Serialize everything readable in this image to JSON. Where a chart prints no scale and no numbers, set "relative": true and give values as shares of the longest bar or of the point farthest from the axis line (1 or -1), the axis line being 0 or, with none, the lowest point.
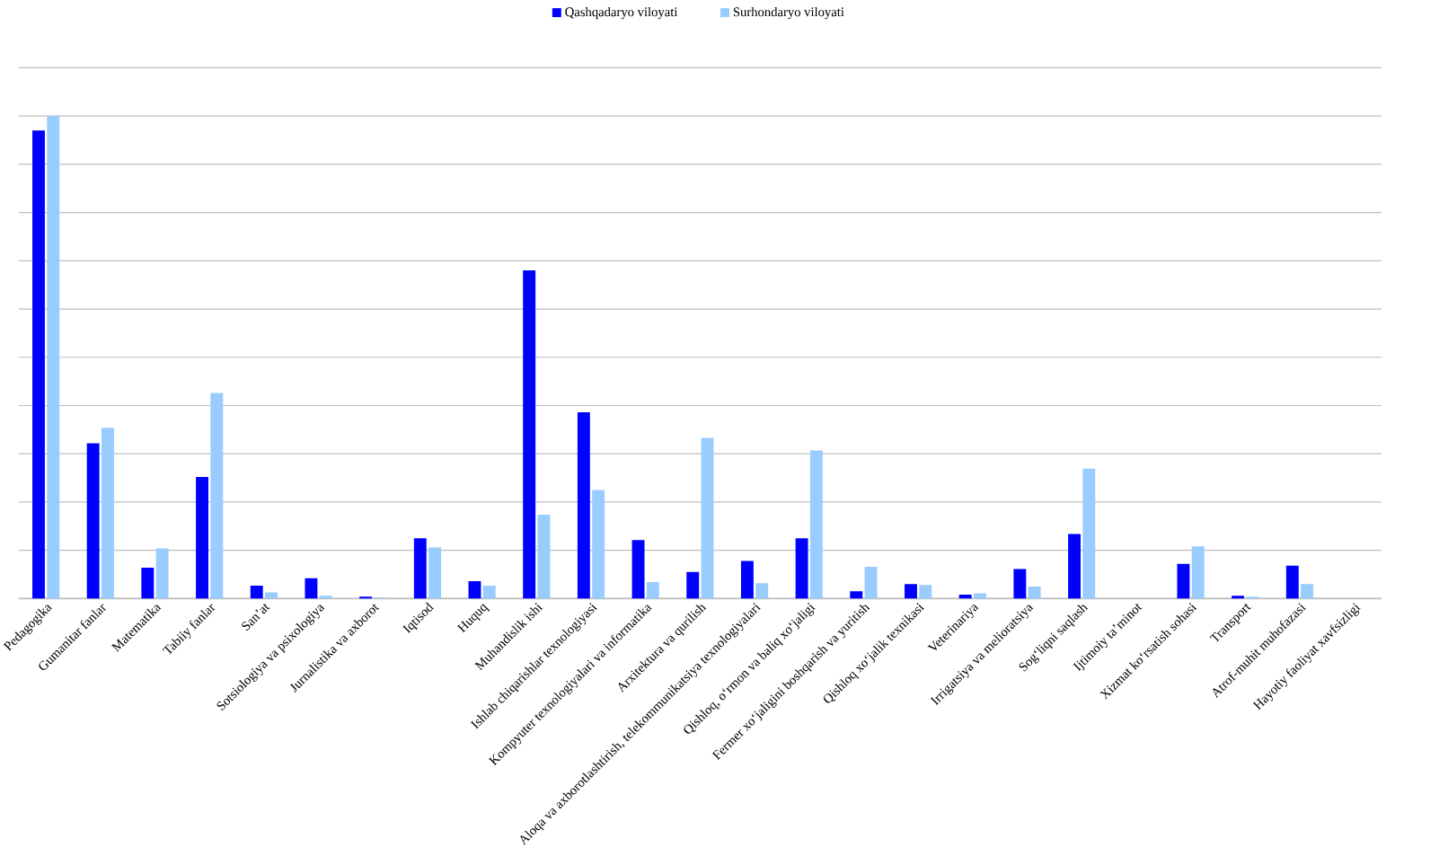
{
  "chart_data": {
    "type": "bar",
    "relative": true,
    "grid": "y",
    "legend": "top",
    "categories": [
      "Pedagogika",
      "Gumanitar fanlar",
      "Matematika",
      "Tabiiy fanlar",
      "San’at",
      "Sotsiologiya va psixologiya",
      "Jurnalistika va axborot",
      "Iqtisod",
      "Huquq",
      "Muhandislik ishi",
      "Ishlab chiqarishlar texnologiyasi",
      "Kompyuter texnologiyalari va informatika",
      "Arxitektura va qurilish",
      "Aloqa va axborotlashtirish, telekommunikatsiya texnologiyalari",
      "Qishloq, o‘rmon va baliq xo‘jaligi",
      "Fermer xo‘jaligini  boshqarish va yuritish",
      "Qishloq  xo‘jalik  texnikasi",
      "Veterinariya",
      "Irrigatsiya va melioratsiya",
      "Sog‘liqni  saqlash",
      "Ijtimoiy  ta’minot",
      "Xizmat  ko‘rsatish sohasi",
      "Transport",
      "Atrof-muhit muhofazasi",
      "Hayotiy faoliyat xavfsizligi"
    ],
    "series": [
      {
        "name": "Qashqadaryo viloyati",
        "color": "#0000ff",
        "values": [
          0.97,
          0.322,
          0.064,
          0.252,
          0.027,
          0.042,
          0.004,
          0.125,
          0.036,
          0.68,
          0.386,
          0.121,
          0.055,
          0.078,
          0.125,
          0.015,
          0.03,
          0.008,
          0.061,
          0.134,
          0,
          0.072,
          0.006,
          0.068,
          0
        ]
      },
      {
        "name": "Surhondaryo viloyati",
        "color": "#99ccff",
        "values": [
          1.0,
          0.354,
          0.104,
          0.426,
          0.013,
          0.006,
          0.002,
          0.106,
          0.027,
          0.174,
          0.225,
          0.034,
          0.333,
          0.032,
          0.307,
          0.066,
          0.028,
          0.011,
          0.025,
          0.269,
          0,
          0.108,
          0.004,
          0.03,
          0
        ]
      }
    ]
  }
}
